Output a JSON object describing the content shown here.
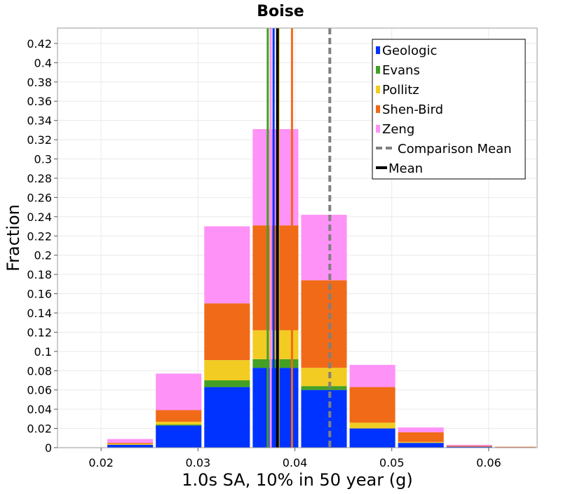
{
  "chart_data": {
    "type": "bar",
    "stacked": true,
    "title": "Boise",
    "xlabel": "1.0s SA, 10% in 50 year (g)",
    "ylabel": "Fraction",
    "xlim": [
      0.0155,
      0.065
    ],
    "ylim": [
      0,
      0.436
    ],
    "xticks": [
      {
        "value": 0.02,
        "label": "0.02"
      },
      {
        "value": 0.03,
        "label": "0.03"
      },
      {
        "value": 0.04,
        "label": "0.04"
      },
      {
        "value": 0.05,
        "label": "0.05"
      },
      {
        "value": 0.06,
        "label": "0.06"
      }
    ],
    "yticks": [
      {
        "value": 0,
        "label": "0"
      },
      {
        "value": 0.02,
        "label": "0.02"
      },
      {
        "value": 0.04,
        "label": "0.04"
      },
      {
        "value": 0.06,
        "label": "0.06"
      },
      {
        "value": 0.08,
        "label": "0.08"
      },
      {
        "value": 0.1,
        "label": "0.1"
      },
      {
        "value": 0.12,
        "label": "0.12"
      },
      {
        "value": 0.14,
        "label": "0.14"
      },
      {
        "value": 0.16,
        "label": "0.16"
      },
      {
        "value": 0.18,
        "label": "0.18"
      },
      {
        "value": 0.2,
        "label": "0.2"
      },
      {
        "value": 0.22,
        "label": "0.22"
      },
      {
        "value": 0.24,
        "label": "0.24"
      },
      {
        "value": 0.26,
        "label": "0.26"
      },
      {
        "value": 0.28,
        "label": "0.28"
      },
      {
        "value": 0.3,
        "label": "0.3"
      },
      {
        "value": 0.32,
        "label": "0.32"
      },
      {
        "value": 0.34,
        "label": "0.34"
      },
      {
        "value": 0.36,
        "label": "0.36"
      },
      {
        "value": 0.38,
        "label": "0.38"
      },
      {
        "value": 0.4,
        "label": "0.4"
      },
      {
        "value": 0.42,
        "label": "0.42"
      }
    ],
    "grid": true,
    "legend_position": "top-right",
    "bins": [
      {
        "start": 0.0155,
        "end": 0.0205
      },
      {
        "start": 0.0205,
        "end": 0.0255
      },
      {
        "start": 0.0255,
        "end": 0.0305
      },
      {
        "start": 0.0305,
        "end": 0.0355
      },
      {
        "start": 0.0355,
        "end": 0.0405
      },
      {
        "start": 0.0405,
        "end": 0.0455
      },
      {
        "start": 0.0455,
        "end": 0.0505
      },
      {
        "start": 0.0505,
        "end": 0.0555
      },
      {
        "start": 0.0555,
        "end": 0.0605
      },
      {
        "start": 0.0605,
        "end": 0.065
      }
    ],
    "series": [
      {
        "name": "Geologic",
        "color": "#0033ff",
        "values": [
          0.0,
          0.003,
          0.023,
          0.063,
          0.083,
          0.06,
          0.02,
          0.005,
          0.001,
          0.0005
        ]
      },
      {
        "name": "Evans",
        "color": "#44a024",
        "values": [
          0.0,
          0.0,
          0.001,
          0.007,
          0.009,
          0.004,
          0.0,
          0.0,
          0.0,
          0.0
        ]
      },
      {
        "name": "Pollitz",
        "color": "#f2cc22",
        "values": [
          0.0,
          0.001,
          0.003,
          0.021,
          0.03,
          0.019,
          0.006,
          0.001,
          0.0,
          0.0
        ]
      },
      {
        "name": "Shen-Bird",
        "color": "#f06a18",
        "values": [
          0.0,
          0.001,
          0.012,
          0.059,
          0.109,
          0.091,
          0.037,
          0.01,
          0.001,
          0.0005
        ]
      },
      {
        "name": "Zeng",
        "color": "#ff92f7",
        "values": [
          0.0,
          0.004,
          0.038,
          0.08,
          0.1,
          0.068,
          0.023,
          0.005,
          0.001,
          0.0
        ]
      }
    ],
    "vertical_lines": [
      {
        "name": "Geologic mean",
        "x": 0.0378,
        "color": "#0033ff",
        "style": "solid"
      },
      {
        "name": "Evans mean",
        "x": 0.0372,
        "color": "#44a024",
        "style": "solid"
      },
      {
        "name": "Pollitz mean",
        "x": 0.0383,
        "color": "#f2cc22",
        "style": "solid"
      },
      {
        "name": "Shen-Bird mean",
        "x": 0.0397,
        "color": "#f06a18",
        "style": "solid"
      },
      {
        "name": "Zeng mean",
        "x": 0.0375,
        "color": "#ff92f7",
        "style": "solid"
      },
      {
        "name": "Comparison Mean",
        "x": 0.0436,
        "color": "#808080",
        "style": "dashed"
      },
      {
        "name": "Mean",
        "x": 0.0382,
        "color": "#000000",
        "style": "solid"
      }
    ],
    "legend": [
      {
        "label": "Geologic",
        "color": "#0033ff",
        "kind": "box"
      },
      {
        "label": "Evans",
        "color": "#44a024",
        "kind": "box"
      },
      {
        "label": "Pollitz",
        "color": "#f2cc22",
        "kind": "box"
      },
      {
        "label": "Shen-Bird",
        "color": "#f06a18",
        "kind": "box"
      },
      {
        "label": "Zeng",
        "color": "#ff92f7",
        "kind": "box"
      },
      {
        "label": "Comparison Mean",
        "color": "#808080",
        "kind": "dashed"
      },
      {
        "label": "Mean",
        "color": "#000000",
        "kind": "line"
      }
    ]
  }
}
